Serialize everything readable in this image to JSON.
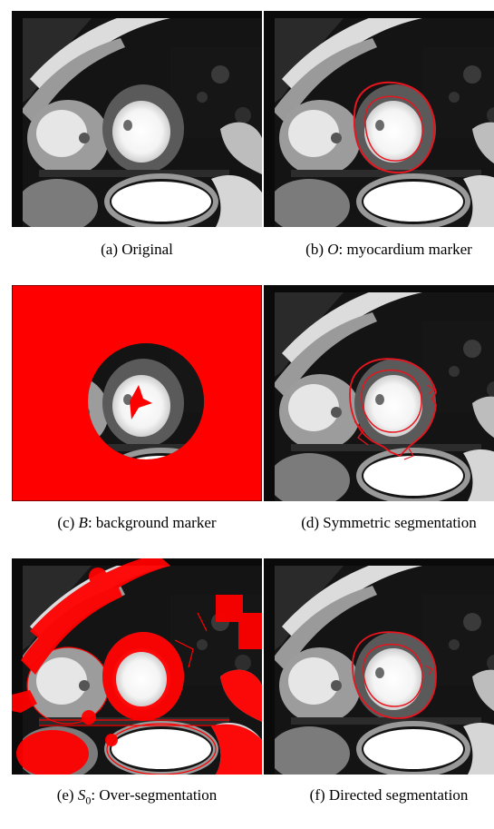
{
  "figure": {
    "panels": [
      {
        "id": "a",
        "label": "(a)",
        "math": "",
        "text": "Original"
      },
      {
        "id": "b",
        "label": "(b)",
        "math": "O",
        "text": ": myocardium marker"
      },
      {
        "id": "c",
        "label": "(c)",
        "math": "B",
        "text": ": background marker"
      },
      {
        "id": "d",
        "label": "(d)",
        "math": "",
        "text": "Symmetric segmentation"
      },
      {
        "id": "e",
        "label": "(e)",
        "math": "S",
        "sub": "0",
        "text": ": Over-segmentation"
      },
      {
        "id": "f",
        "label": "(f)",
        "math": "",
        "text": "Directed segmentation"
      }
    ],
    "colors": {
      "marker": "#ff0000",
      "contour": "#e8141e",
      "background": "#101010"
    }
  }
}
